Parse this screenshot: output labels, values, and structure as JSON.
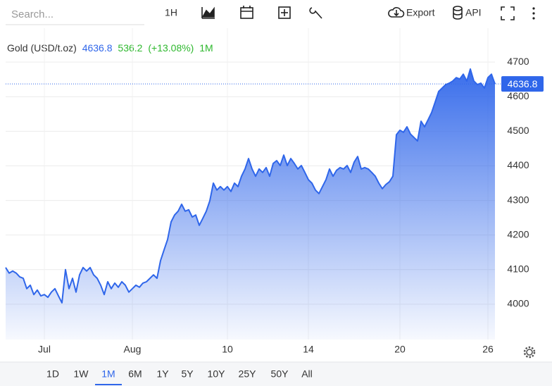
{
  "toolbar": {
    "search": "Search...",
    "interval": "1H",
    "export": "Export",
    "api": "API"
  },
  "chart_data": {
    "type": "area",
    "title": "Gold (USD/t.oz)",
    "change": "536.2",
    "change_pct": "(+13.08%)",
    "period": "1M",
    "color": "#2f66ea",
    "change_color": "#2eb82e",
    "grid": true,
    "last_value_line": true,
    "categories": [
      null,
      null,
      null,
      null,
      null,
      null,
      null,
      null,
      null,
      null,
      null,
      "Jul",
      null,
      null,
      null,
      null,
      null,
      null,
      null,
      null,
      null,
      null,
      null,
      null,
      null,
      null,
      null,
      null,
      null,
      null,
      null,
      null,
      null,
      null,
      null,
      null,
      "Aug",
      null,
      null,
      null,
      null,
      null,
      null,
      null,
      null,
      null,
      null,
      null,
      null,
      null,
      null,
      null,
      null,
      null,
      null,
      null,
      null,
      null,
      null,
      null,
      null,
      null,
      null,
      "10",
      null,
      null,
      null,
      null,
      null,
      null,
      null,
      null,
      null,
      null,
      null,
      null,
      null,
      null,
      null,
      null,
      null,
      null,
      null,
      null,
      null,
      null,
      "14",
      null,
      null,
      null,
      null,
      null,
      null,
      null,
      null,
      null,
      null,
      null,
      null,
      null,
      null,
      null,
      null,
      null,
      null,
      null,
      null,
      null,
      null,
      null,
      null,
      null,
      "20",
      null,
      null,
      null,
      null,
      null,
      null,
      null,
      null,
      null,
      null,
      null,
      null,
      null,
      null,
      null,
      null,
      null,
      null,
      null,
      null,
      null,
      null,
      null,
      null,
      "26",
      null,
      null
    ],
    "values": [
      4106,
      4090,
      4096,
      4090,
      4079,
      4075,
      4045,
      4055,
      4028,
      4041,
      4024,
      4028,
      4020,
      4035,
      4045,
      4024,
      4004,
      4100,
      4045,
      4075,
      4035,
      4085,
      4106,
      4096,
      4106,
      4085,
      4075,
      4055,
      4028,
      4065,
      4045,
      4061,
      4049,
      4065,
      4055,
      4035,
      4045,
      4055,
      4049,
      4061,
      4065,
      4075,
      4085,
      4075,
      4126,
      4157,
      4187,
      4238,
      4258,
      4269,
      4289,
      4269,
      4273,
      4252,
      4258,
      4228,
      4248,
      4269,
      4299,
      4350,
      4330,
      4340,
      4330,
      4340,
      4326,
      4350,
      4340,
      4370,
      4391,
      4421,
      4391,
      4370,
      4391,
      4381,
      4395,
      4370,
      4407,
      4415,
      4401,
      4431,
      4401,
      4421,
      4407,
      4391,
      4401,
      4381,
      4360,
      4350,
      4330,
      4320,
      4340,
      4360,
      4391,
      4370,
      4387,
      4395,
      4391,
      4401,
      4381,
      4411,
      4427,
      4391,
      4395,
      4391,
      4381,
      4370,
      4350,
      4334,
      4346,
      4354,
      4370,
      4490,
      4503,
      4497,
      4513,
      4492,
      4482,
      4472,
      4529,
      4513,
      4533,
      4554,
      4584,
      4615,
      4625,
      4635,
      4639,
      4645,
      4655,
      4651,
      4665,
      4645,
      4680,
      4645,
      4635,
      4639,
      4625,
      4655,
      4665,
      4636.8
    ],
    "ylim": [
      3898,
      4798
    ],
    "yticks": [
      4000,
      4100,
      4200,
      4300,
      4400,
      4500,
      4600,
      4700
    ]
  },
  "ranges": [
    "1D",
    "1W",
    "1M",
    "6M",
    "1Y",
    "5Y",
    "10Y",
    "25Y",
    "50Y",
    "All"
  ],
  "active_range": "1M"
}
